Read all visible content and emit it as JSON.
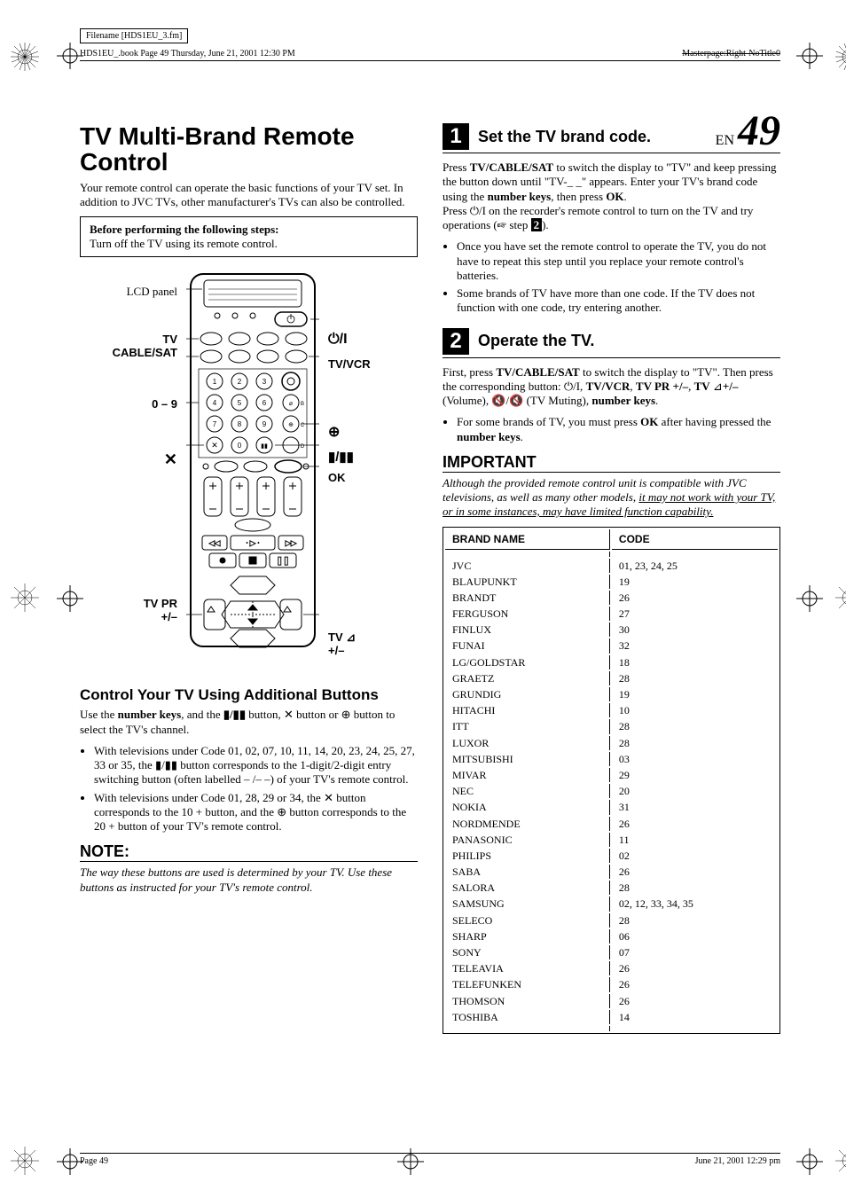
{
  "meta": {
    "filename_box": "Filename [HDS1EU_3.fm]",
    "book_line": "HDS1EU_.book  Page 49  Thursday, June 21, 2001  12:30 PM",
    "masterpage": "Masterpage:Right-NoTitle0",
    "page_en": "EN",
    "page_num": "49",
    "footer_page": "Page 49",
    "footer_date": "June 21, 2001  12:29 pm"
  },
  "left": {
    "title": "TV Multi-Brand Remote Control",
    "intro": "Your remote control can operate the basic functions of your TV set. In addition to JVC TVs, other manufacturer's TVs can also be controlled.",
    "box_head": "Before performing the following steps:",
    "box_body": "Turn off the TV using its remote control.",
    "labels": {
      "lcd": "LCD panel",
      "tv_cable_sat": "TV\nCABLE/SAT",
      "zero_nine": "0 – 9",
      "x": "✕",
      "tv_pr": "TV PR\n+/–",
      "power": "⏻/I",
      "tv_vcr": "TV/VCR",
      "clock": "⊕",
      "slash": "▮/▮▮",
      "ok": "OK",
      "tv_vol": "TV ⊿\n+/–"
    },
    "sub_title": "Control Your TV Using Additional Buttons",
    "sub_body": "Use the number keys, and the ▮/▮▮ button, ✕ button or ⊕ button to select the TV's channel.",
    "bullets": [
      "With televisions under Code 01, 02, 07, 10, 11, 14, 20, 23, 24, 25, 27, 33 or 35, the ▮/▮▮ button corresponds to the 1-digit/2-digit entry switching button (often labelled – /– –) of your TV's remote control.",
      "With televisions under Code 01, 28, 29 or 34, the ✕ button corresponds to the 10 + button, and the ⊕ button corresponds to the 20 + button of your TV's remote control."
    ],
    "note_head": "NOTE:",
    "note_body": "The way these buttons are used is determined by your TV. Use these buttons as instructed for your TV's remote control."
  },
  "right": {
    "step1_num": "1",
    "step1_title": "Set the TV brand code.",
    "step1_body1": "Press TV/CABLE/SAT to switch the display to \"TV\" and keep pressing the button down until \"TV-_ _\" appears. Enter your TV's brand code using the number keys, then press OK.",
    "step1_body2": "Press ⏻/I on the recorder's remote control to turn on the TV and try operations (☞ step 2).",
    "step1_bullets": [
      "Once you have set the remote control to operate the TV, you do not have to repeat this step until you replace your remote control's batteries.",
      "Some brands of TV have more than one code. If the TV does not function with one code, try entering another."
    ],
    "step2_num": "2",
    "step2_title": "Operate the TV.",
    "step2_body": "First, press TV/CABLE/SAT to switch the display to \"TV\". Then press the corresponding button: ⏻/I, TV/VCR, TV PR +/–, TV ⊿+/– (Volume), 🔇/🔇 (TV Muting), number keys.",
    "step2_bullets": [
      "For some brands of TV, you must press OK after having pressed the number keys."
    ],
    "important_head": "IMPORTANT",
    "important_body_prefix": "Although the provided remote control unit is compatible with JVC televisions, as well as many other models, ",
    "important_body_underline": "it may not work with your TV, or in some instances, may have limited function capability.",
    "table": {
      "head_brand": "BRAND NAME",
      "head_code": "CODE",
      "rows": [
        {
          "brand": "JVC",
          "code": "01, 23, 24, 25"
        },
        {
          "brand": "BLAUPUNKT",
          "code": "19"
        },
        {
          "brand": "BRANDT",
          "code": "26"
        },
        {
          "brand": "FERGUSON",
          "code": "27"
        },
        {
          "brand": "FINLUX",
          "code": "30"
        },
        {
          "brand": "FUNAI",
          "code": "32"
        },
        {
          "brand": "LG/GOLDSTAR",
          "code": "18"
        },
        {
          "brand": "GRAETZ",
          "code": "28"
        },
        {
          "brand": "GRUNDIG",
          "code": "19"
        },
        {
          "brand": "HITACHI",
          "code": "10"
        },
        {
          "brand": "ITT",
          "code": "28"
        },
        {
          "brand": "LUXOR",
          "code": "28"
        },
        {
          "brand": "MITSUBISHI",
          "code": "03"
        },
        {
          "brand": "MIVAR",
          "code": "29"
        },
        {
          "brand": "NEC",
          "code": "20"
        },
        {
          "brand": "NOKIA",
          "code": "31"
        },
        {
          "brand": "NORDMENDE",
          "code": "26"
        },
        {
          "brand": "PANASONIC",
          "code": "11"
        },
        {
          "brand": "PHILIPS",
          "code": "02"
        },
        {
          "brand": "SABA",
          "code": "26"
        },
        {
          "brand": "SALORA",
          "code": "28"
        },
        {
          "brand": "SAMSUNG",
          "code": "02, 12, 33, 34, 35"
        },
        {
          "brand": "SELECO",
          "code": "28"
        },
        {
          "brand": "SHARP",
          "code": "06"
        },
        {
          "brand": "SONY",
          "code": "07"
        },
        {
          "brand": "TELEAVIA",
          "code": "26"
        },
        {
          "brand": "TELEFUNKEN",
          "code": "26"
        },
        {
          "brand": "THOMSON",
          "code": "26"
        },
        {
          "brand": "TOSHIBA",
          "code": "14"
        }
      ]
    }
  },
  "colors": {
    "text": "#000000",
    "bg": "#ffffff"
  }
}
